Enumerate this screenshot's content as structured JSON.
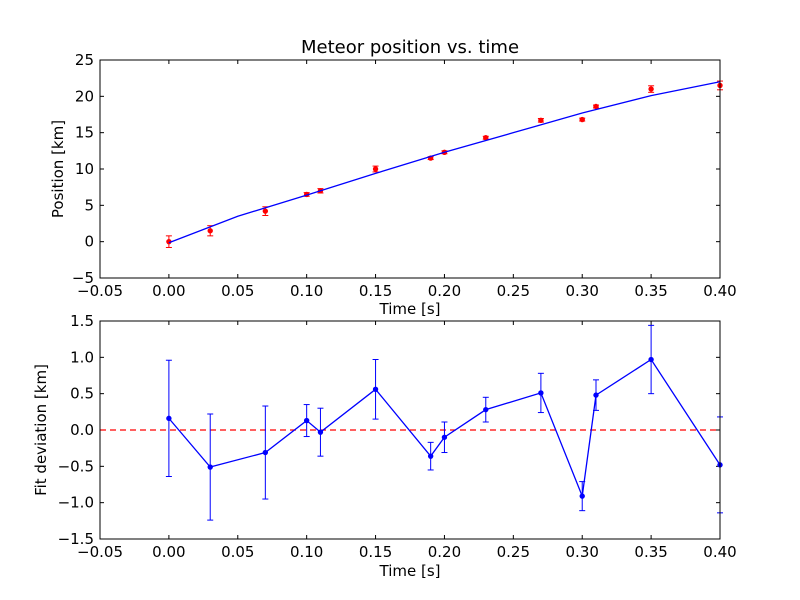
{
  "chart_data": [
    {
      "type": "scatter",
      "title": "Meteor position vs. time",
      "xlabel": "Time [s]",
      "ylabel": "Position [km]",
      "xlim": [
        -0.05,
        0.4
      ],
      "ylim": [
        -5,
        25
      ],
      "xticks": [
        "−0.05",
        "0.00",
        "0.05",
        "0.10",
        "0.15",
        "0.20",
        "0.25",
        "0.30",
        "0.35",
        "0.40"
      ],
      "yticks": [
        "−5",
        "0",
        "5",
        "10",
        "15",
        "20",
        "25"
      ],
      "grid": false,
      "series": [
        {
          "kind": "errorbar-points",
          "color": "#ff0000",
          "x": [
            0.0,
            0.03,
            0.07,
            0.1,
            0.11,
            0.15,
            0.19,
            0.2,
            0.23,
            0.27,
            0.3,
            0.31,
            0.35,
            0.4
          ],
          "y": [
            0.0,
            1.5,
            4.2,
            6.5,
            7.0,
            10.0,
            11.5,
            12.3,
            14.3,
            16.7,
            16.8,
            18.6,
            21.0,
            21.5
          ],
          "yerr": [
            0.8,
            0.7,
            0.6,
            0.25,
            0.3,
            0.4,
            0.2,
            0.2,
            0.2,
            0.25,
            0.2,
            0.2,
            0.45,
            0.6
          ]
        },
        {
          "kind": "fit-line",
          "color": "#0000ff",
          "x": [
            0.0,
            0.05,
            0.1,
            0.15,
            0.2,
            0.25,
            0.3,
            0.35,
            0.4
          ],
          "y": [
            -0.15,
            3.5,
            6.4,
            9.4,
            12.3,
            15.0,
            17.7,
            20.1,
            22.0
          ]
        }
      ]
    },
    {
      "type": "line",
      "title": "",
      "xlabel": "Time [s]",
      "ylabel": "Fit deviation [km]",
      "xlim": [
        -0.05,
        0.4
      ],
      "ylim": [
        -1.5,
        1.5
      ],
      "xticks": [
        "−0.05",
        "0.00",
        "0.05",
        "0.10",
        "0.15",
        "0.20",
        "0.25",
        "0.30",
        "0.35",
        "0.40"
      ],
      "yticks": [
        "−1.5",
        "−1.0",
        "−0.5",
        "0.0",
        "0.5",
        "1.0",
        "1.5"
      ],
      "grid": false,
      "reference_line": {
        "y": 0.0,
        "color": "#ff0000",
        "style": "dashed"
      },
      "series": [
        {
          "kind": "errorbar-line",
          "color": "#0000ff",
          "x": [
            0.0,
            0.03,
            0.07,
            0.1,
            0.11,
            0.15,
            0.19,
            0.2,
            0.23,
            0.27,
            0.3,
            0.31,
            0.35,
            0.4
          ],
          "y": [
            0.16,
            -0.51,
            -0.31,
            0.13,
            -0.03,
            0.56,
            -0.36,
            -0.1,
            0.28,
            0.51,
            -0.91,
            0.48,
            0.97,
            -0.48
          ],
          "yerr": [
            0.8,
            0.73,
            0.64,
            0.22,
            0.33,
            0.41,
            0.19,
            0.21,
            0.17,
            0.27,
            0.2,
            0.21,
            0.47,
            0.66
          ]
        }
      ]
    }
  ]
}
